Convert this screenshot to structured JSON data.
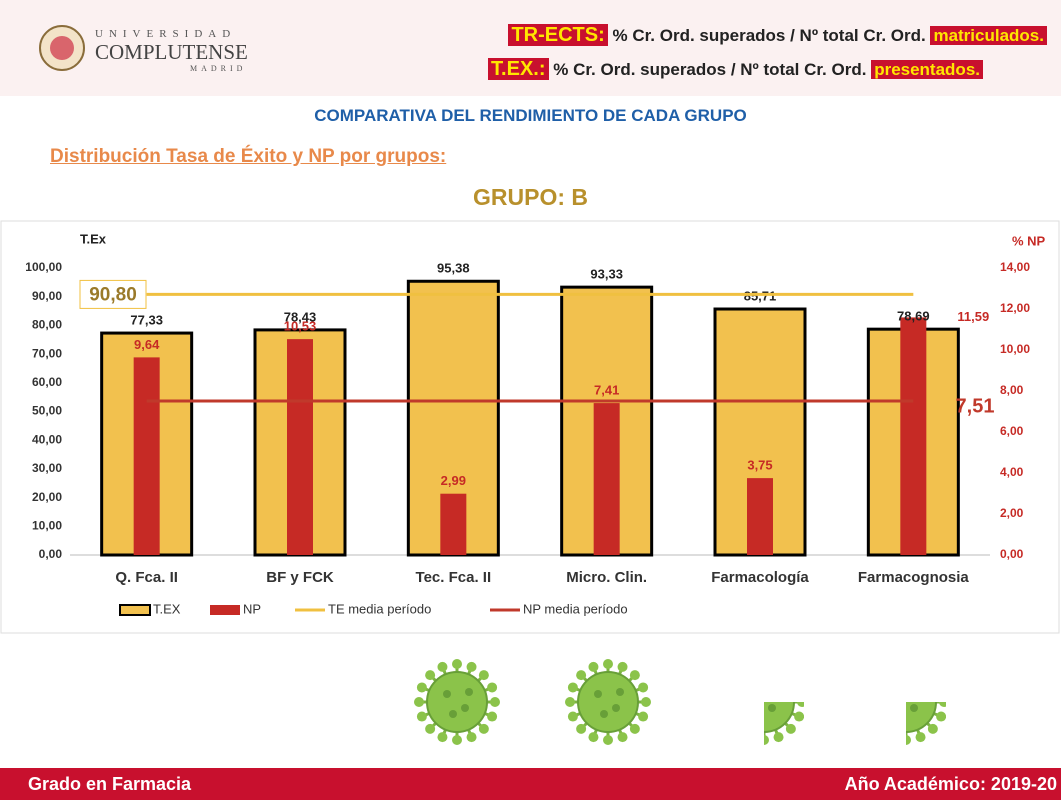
{
  "header": {
    "logo_top": "UNIVERSIDAD",
    "logo_main": "COMPLUTENSE",
    "logo_sub": "MADRID",
    "def1_key": "TR-ECTS:",
    "def1_text": "% Cr. Ord. superados / Nº total Cr. Ord.",
    "def1_em": "matriculados.",
    "def2_key": "T.EX.:",
    "def2_text": "% Cr. Ord. superados / Nº total Cr. Ord.",
    "def2_em": "presentados."
  },
  "heading": "COMPARATIVA DEL RENDIMIENTO DE CADA GRUPO",
  "subheading": "Distribución Tasa de Éxito y NP por grupos:",
  "group": "GRUPO: B",
  "chart_data": {
    "type": "bar",
    "y_label": "T.Ex",
    "y2_label": "% NP",
    "categories": [
      "Q. Fca. II",
      "BF y FCK",
      "Tec. Fca. II",
      "Micro. Clin.",
      "Farmacología",
      "Farmacognosia"
    ],
    "series": [
      {
        "name": "T.EX",
        "color": "#f2c14e",
        "values": [
          77.33,
          78.43,
          95.38,
          93.33,
          85.71,
          78.69
        ],
        "value_labels": [
          "77,33",
          "78,43",
          "95,38",
          "93,33",
          "85,71",
          "78,69"
        ]
      },
      {
        "name": "NP",
        "color": "#c62a25",
        "axis": "y2",
        "values": [
          9.64,
          10.53,
          2.99,
          7.41,
          3.75,
          11.59
        ],
        "value_labels": [
          "9,64",
          "10,53",
          "2,99",
          "7,41",
          "3,75",
          "11,59"
        ]
      }
    ],
    "reference_lines": [
      {
        "name": "TE media período",
        "color": "#f0c040",
        "value": 90.8,
        "value_label": "90,80"
      },
      {
        "name": "NP media período",
        "color": "#c0392b",
        "axis": "y2",
        "value": 7.51,
        "value_label": "7,51"
      }
    ],
    "ylim": [
      0,
      100
    ],
    "yticks": [
      {
        "value": 0,
        "label": "0,00"
      },
      {
        "value": 10,
        "label": "10,00"
      },
      {
        "value": 20,
        "label": "20,00"
      },
      {
        "value": 30,
        "label": "30,00"
      },
      {
        "value": 40,
        "label": "40,00"
      },
      {
        "value": 50,
        "label": "50,00"
      },
      {
        "value": 60,
        "label": "60,00"
      },
      {
        "value": 70,
        "label": "70,00"
      },
      {
        "value": 80,
        "label": "80,00"
      },
      {
        "value": 90,
        "label": "90,00"
      },
      {
        "value": 100,
        "label": "100,00"
      }
    ],
    "y2lim": [
      0,
      14
    ],
    "y2ticks": [
      {
        "value": 0,
        "label": "0,00"
      },
      {
        "value": 2,
        "label": "2,00"
      },
      {
        "value": 4,
        "label": "4,00"
      },
      {
        "value": 6,
        "label": "6,00"
      },
      {
        "value": 8,
        "label": "8,00"
      },
      {
        "value": 10,
        "label": "10,00"
      },
      {
        "value": 12,
        "label": "12,00"
      },
      {
        "value": 14,
        "label": "14,00"
      }
    ],
    "grid": false,
    "legend": "bottom"
  },
  "footer": {
    "left": "Grado en Farmacia",
    "right": "Año Académico: 2019-20"
  }
}
